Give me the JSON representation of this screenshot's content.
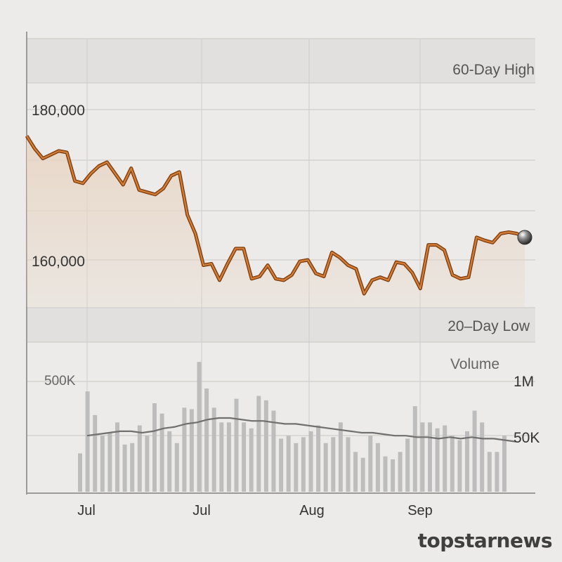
{
  "chart_data": [
    {
      "type": "line",
      "x_ticks": [
        "Jul",
        "Jul",
        "Aug",
        "Sep"
      ],
      "y_ticks": [
        "180,000",
        "160,000"
      ],
      "band_labels": {
        "high": "60-Day High",
        "low": "20–Day Low"
      },
      "ylim": [
        154000,
        192000
      ],
      "values": [
        176500,
        174800,
        173500,
        174000,
        174500,
        174300,
        170500,
        170200,
        171500,
        172500,
        173000,
        171500,
        170000,
        172200,
        169300,
        169000,
        168700,
        169500,
        171200,
        171700,
        166000,
        163500,
        159300,
        159500,
        157300,
        159500,
        161500,
        161500,
        157500,
        157800,
        159300,
        157500,
        157300,
        158000,
        159800,
        160000,
        158200,
        157800,
        161000,
        160300,
        159300,
        158800,
        155500,
        157300,
        157700,
        157300,
        159700,
        159500,
        158300,
        156200,
        162000,
        162000,
        161300,
        158000,
        157500,
        157700,
        163000,
        162600,
        162300,
        163500,
        163700,
        163500,
        163000
      ],
      "last_marker": 163000,
      "line_color": "#b35e1a",
      "fill_color": "#e8d6c6",
      "grid": true
    },
    {
      "type": "bar",
      "title": "Volume",
      "y_ticks_left": [
        "500K"
      ],
      "y_ticks_right": [
        "1M",
        "50K"
      ],
      "values": [
        0.26,
        0.68,
        0.52,
        0.38,
        0.4,
        0.47,
        0.32,
        0.33,
        0.45,
        0.38,
        0.6,
        0.53,
        0.41,
        0.33,
        0.57,
        0.56,
        0.88,
        0.7,
        0.57,
        0.47,
        0.47,
        0.63,
        0.47,
        0.43,
        0.65,
        0.62,
        0.55,
        0.36,
        0.38,
        0.33,
        0.37,
        0.41,
        0.45,
        0.33,
        0.37,
        0.47,
        0.37,
        0.27,
        0.23,
        0.38,
        0.33,
        0.24,
        0.22,
        0.27,
        0.36,
        0.58,
        0.47,
        0.47,
        0.43,
        0.45,
        0.38,
        0.35,
        0.41,
        0.55,
        0.47,
        0.27,
        0.27,
        0.38
      ],
      "moving_average": [
        0.38,
        0.39,
        0.4,
        0.41,
        0.41,
        0.4,
        0.41,
        0.43,
        0.44,
        0.46,
        0.47,
        0.49,
        0.5,
        0.5,
        0.49,
        0.48,
        0.48,
        0.47,
        0.46,
        0.46,
        0.45,
        0.44,
        0.43,
        0.42,
        0.41,
        0.4,
        0.4,
        0.39,
        0.38,
        0.38,
        0.37,
        0.37,
        0.36,
        0.37,
        0.36,
        0.37,
        0.36,
        0.36,
        0.35,
        0.34
      ],
      "bar_color": "#bdbdbd",
      "average_color": "#707070"
    }
  ],
  "watermark": "topstarnews"
}
